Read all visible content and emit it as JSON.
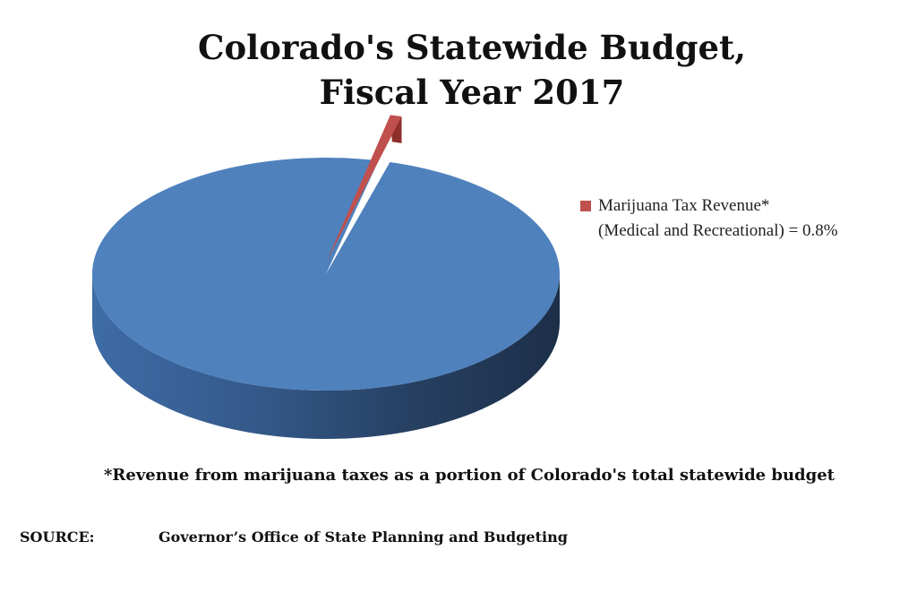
{
  "title": {
    "line1": "Colorado's Statewide Budget,",
    "line2": "Fiscal Year 2017"
  },
  "chart_data": {
    "type": "pie",
    "style": "3d-exploded",
    "slices": [
      {
        "name": "",
        "value": 99.2,
        "color": "#4F81BD"
      },
      {
        "name": "Marijuana Tax Revenue*",
        "value": 0.8,
        "color": "#C0504D",
        "exploded": true
      }
    ],
    "legend": {
      "position": "right",
      "line1": "Marijuana Tax Revenue*",
      "line2": "(Medical and Recreational) = 0.8%"
    }
  },
  "footnote": "*Revenue from marijuana taxes as a portion of Colorado's total statewide budget",
  "source": {
    "label": "SOURCE:",
    "text": "Governor’s Office of State Planning and Budgeting"
  }
}
